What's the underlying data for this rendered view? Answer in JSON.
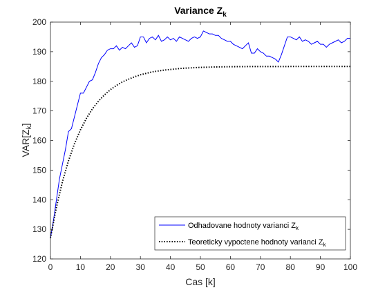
{
  "chart_data": {
    "type": "line",
    "title": "Variance Z",
    "title_subscript": "k",
    "xlabel": "Cas [k]",
    "ylabel": "VAR[Z",
    "ylabel_subscript": "k",
    "ylabel_suffix": "]",
    "xlim": [
      0,
      100
    ],
    "ylim": [
      120,
      200
    ],
    "xticks": [
      0,
      10,
      20,
      30,
      40,
      50,
      60,
      70,
      80,
      90,
      100
    ],
    "yticks": [
      120,
      130,
      140,
      150,
      160,
      170,
      180,
      190,
      200
    ],
    "grid": false,
    "legend_position": "bottom-right",
    "series": [
      {
        "name": "Odhadovane hodnoty varianci Z",
        "name_subscript": "k",
        "color": "#0000ff",
        "style": "solid",
        "x": [
          0,
          1,
          2,
          3,
          4,
          5,
          6,
          7,
          8,
          9,
          10,
          11,
          12,
          13,
          14,
          15,
          16,
          17,
          18,
          19,
          20,
          21,
          22,
          23,
          24,
          25,
          26,
          27,
          28,
          29,
          30,
          31,
          32,
          33,
          34,
          35,
          36,
          37,
          38,
          39,
          40,
          41,
          42,
          43,
          44,
          45,
          46,
          47,
          48,
          49,
          50,
          51,
          52,
          53,
          54,
          55,
          56,
          57,
          58,
          59,
          60,
          61,
          62,
          63,
          64,
          65,
          66,
          67,
          68,
          69,
          70,
          71,
          72,
          73,
          74,
          75,
          76,
          77,
          78,
          79,
          80,
          81,
          82,
          83,
          84,
          85,
          86,
          87,
          88,
          89,
          90,
          91,
          92,
          93,
          94,
          95,
          96,
          97,
          98,
          99,
          100
        ],
        "values": [
          127,
          133,
          140,
          147,
          152,
          157,
          163,
          164,
          168,
          172,
          176,
          176,
          178,
          180,
          180.5,
          183,
          186,
          188,
          189,
          190.5,
          191,
          191,
          192,
          190.5,
          191.5,
          191,
          192,
          193,
          191.5,
          192,
          195,
          195,
          193,
          194.5,
          195,
          194,
          195.5,
          193.5,
          194,
          195,
          194,
          194.5,
          193.5,
          195,
          194.5,
          194,
          193.5,
          194.5,
          195,
          194.5,
          195,
          197,
          196.5,
          196,
          196,
          195.5,
          195.5,
          194.5,
          194,
          193.5,
          193.5,
          192.5,
          192,
          191.5,
          191,
          192,
          193,
          189.5,
          189.5,
          191,
          190,
          189.5,
          188.5,
          188.5,
          188,
          187.5,
          186.5,
          189,
          192,
          195,
          195,
          194.5,
          194,
          195,
          193.5,
          194,
          193.5,
          192.5,
          193,
          193.5,
          192.5,
          192.5,
          191.5,
          192.5,
          193,
          193.5,
          194,
          193,
          193.5,
          194.5,
          194.5
        ]
      },
      {
        "name": "Teoreticky vypoctene hodnoty varianci Z",
        "name_subscript": "k",
        "color": "#000000",
        "style": "dotted",
        "formula_points": "theoretical",
        "x": [
          0,
          2,
          4,
          6,
          8,
          10,
          12,
          14,
          16,
          18,
          20,
          22,
          24,
          26,
          28,
          30,
          32,
          34,
          36,
          38,
          40,
          42,
          44,
          46,
          48,
          50,
          55,
          60,
          65,
          70,
          75,
          80,
          85,
          90,
          95,
          100
        ],
        "values": [
          127,
          137.5,
          146.1,
          153.1,
          158.9,
          163.6,
          167.5,
          170.7,
          173.3,
          175.4,
          177.2,
          178.6,
          179.8,
          180.7,
          181.5,
          182.2,
          182.7,
          183.2,
          183.5,
          183.8,
          184.0,
          184.2,
          184.4,
          184.5,
          184.6,
          184.7,
          184.85,
          184.93,
          184.97,
          184.98,
          184.99,
          185.0,
          185.0,
          185.0,
          185.0,
          185.0
        ]
      }
    ]
  }
}
